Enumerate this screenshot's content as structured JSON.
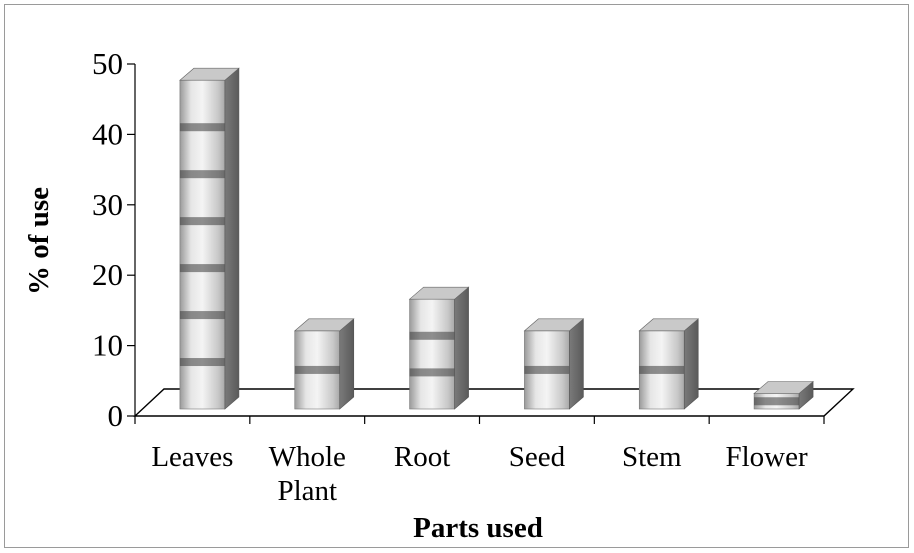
{
  "chart_data": {
    "type": "bar",
    "style": "3d-cylinder-like-column",
    "title": "",
    "xlabel": "Parts used",
    "ylabel": "% of use",
    "categories": [
      [
        "Leaves"
      ],
      [
        "Whole",
        "Plant"
      ],
      [
        "Root"
      ],
      [
        "Seed"
      ],
      [
        "Stem"
      ],
      [
        "Flower"
      ]
    ],
    "values": [
      46.7,
      11.1,
      15.6,
      11.1,
      11.1,
      2.2
    ],
    "ylim": [
      0,
      50
    ],
    "yticks": [
      0,
      10,
      20,
      30,
      40,
      50
    ],
    "grid": false,
    "legend": "none"
  }
}
